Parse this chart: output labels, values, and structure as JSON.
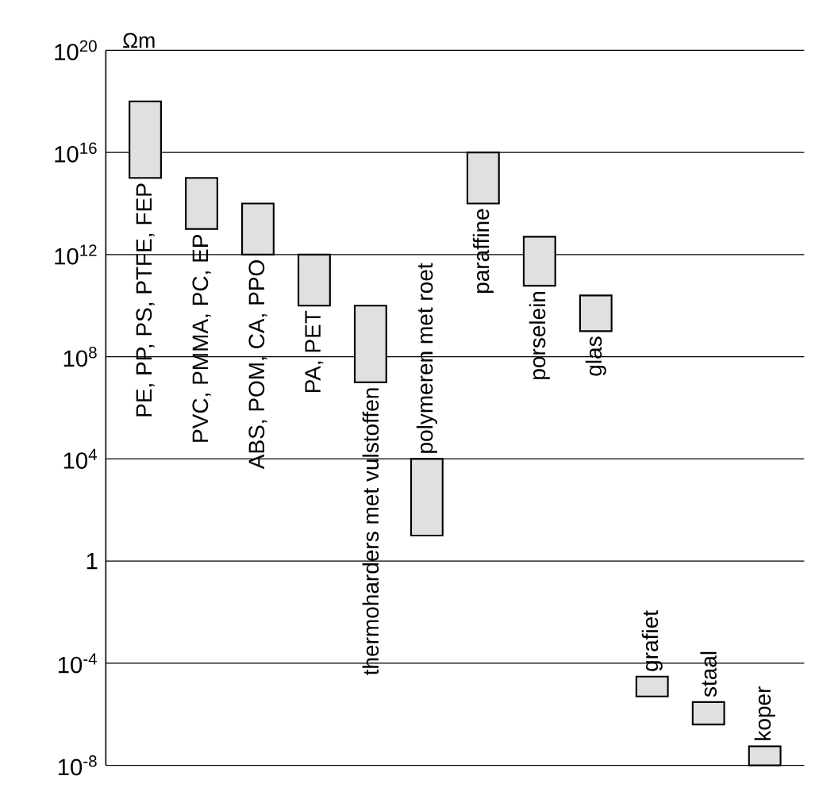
{
  "chart_data": {
    "type": "bar",
    "ylabel": "Ωm",
    "log": "y",
    "grid": "y",
    "tick_labels": "y",
    "color": "#e0e0e0",
    "categories": [
      "PE, PP, PS, PTFE, FEP",
      "PVC, PMMA, PC, EP",
      "ABS, POM, CA, PPO",
      "PA, PET",
      "thermoharders met vulstoffen",
      "polymeren met roet",
      "paraffine",
      "porselein",
      "glas",
      "grafiet",
      "staal",
      "koper"
    ],
    "base": [
      1000000000000000.0,
      10000000000000.0,
      1000000000000.0,
      10000000000.0,
      10000000.0,
      10,
      100000000000000.0,
      60000000000.0,
      1000000000.0,
      5e-06,
      4e-07,
      1e-08
    ],
    "values": [
      9.99e+17,
      990000000000000.0,
      99000000000000.0,
      990000000000.0,
      9990000000.0,
      9990,
      9900000000000000.0,
      4940000000000.0,
      24000000000.0,
      2.5e-05,
      2.6e-06,
      4.6e-08
    ],
    "ylim": [
      1e-08,
      1e+20
    ],
    "yticks": [
      {
        "value": 1e-08,
        "label": "10$^{-8}$"
      },
      {
        "value": 0.0001,
        "label": "10$^{-4}$"
      },
      1,
      {
        "value": 10000.0,
        "label": "10$^{4}$"
      },
      {
        "value": 100000000.0,
        "label": "10$^{8}$"
      },
      {
        "value": 1000000000000.0,
        "label": "10$^{12}$"
      },
      {
        "value": 1e+16,
        "label": "10$^{16}$"
      },
      {
        "value": 1e+20,
        "label": "10$^{20}$"
      }
    ]
  }
}
